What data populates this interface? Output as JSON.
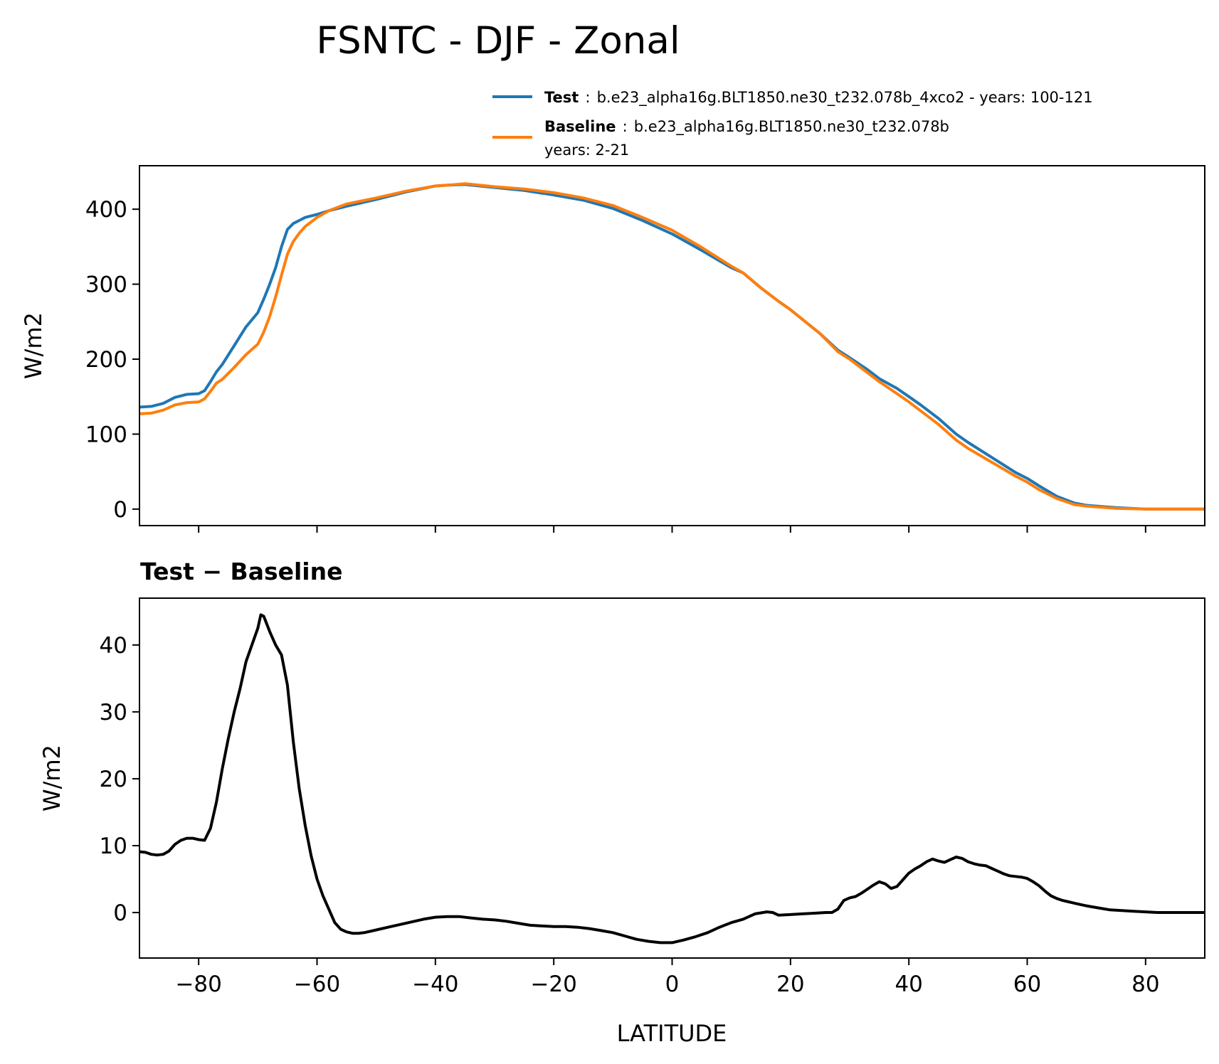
{
  "figure": {
    "title": "FSNTC - DJF - Zonal"
  },
  "legend": {
    "placement": "above-top-right",
    "entries": [
      {
        "name": "Test",
        "colon": ":",
        "desc": "b.e23_alpha16g.BLT1850.ne30_t232.078b_4xco2 - years: 100-121",
        "desc2": "",
        "color": "#1f77b4"
      },
      {
        "name": "Baseline",
        "colon": ":",
        "desc": "b.e23_alpha16g.BLT1850.ne30_t232.078b",
        "desc2": "years: 2-21",
        "color": "#ff7f0e"
      }
    ]
  },
  "chart_data": [
    {
      "type": "line",
      "title": "",
      "xlabel": "",
      "ylabel": "W/m2",
      "xlim": [
        -90,
        90
      ],
      "ylim": [
        -22,
        458
      ],
      "yticks": [
        0,
        100,
        200,
        300,
        400
      ],
      "ytick_labels": [
        "0",
        "100",
        "200",
        "300",
        "400"
      ],
      "xticks": [
        -80,
        -60,
        -40,
        -20,
        0,
        20,
        40,
        60,
        80
      ],
      "xtick_labels": [],
      "grid": false,
      "series": [
        {
          "name": "Test",
          "color": "#1f77b4",
          "x": [
            -90,
            -88,
            -86,
            -84,
            -82,
            -80,
            -79,
            -78,
            -77,
            -76,
            -74,
            -72,
            -70,
            -69,
            -68,
            -67,
            -66,
            -65,
            -64,
            -63,
            -62,
            -61,
            -60,
            -58,
            -55,
            -50,
            -45,
            -40,
            -38,
            -35,
            -30,
            -25,
            -20,
            -15,
            -10,
            -5,
            0,
            5,
            10,
            12,
            15,
            18,
            20,
            25,
            28,
            30,
            33,
            35,
            38,
            40,
            42,
            45,
            48,
            50,
            55,
            58,
            60,
            62,
            65,
            68,
            70,
            75,
            80,
            85,
            90
          ],
          "y": [
            136,
            137,
            141,
            149,
            153,
            154,
            158,
            170,
            183,
            193,
            218,
            243,
            262,
            280,
            300,
            322,
            350,
            373,
            381,
            385,
            389,
            391,
            393,
            398,
            404,
            413,
            423,
            431,
            432,
            433,
            429,
            425,
            419,
            412,
            401,
            385,
            367,
            345,
            322,
            315,
            295,
            277,
            266,
            234,
            212,
            202,
            186,
            174,
            161,
            150,
            139,
            121,
            100,
            89,
            64,
            49,
            41,
            31,
            17,
            8,
            5,
            2,
            0,
            0,
            0
          ]
        },
        {
          "name": "Baseline",
          "color": "#ff7f0e",
          "x": [
            -90,
            -88,
            -86,
            -84,
            -82,
            -80,
            -79,
            -78,
            -77,
            -76,
            -74,
            -72,
            -70,
            -69,
            -68,
            -67,
            -66,
            -65,
            -64,
            -63,
            -62,
            -61,
            -60,
            -58,
            -55,
            -50,
            -45,
            -40,
            -38,
            -35,
            -30,
            -25,
            -20,
            -15,
            -10,
            -5,
            0,
            5,
            10,
            12,
            15,
            18,
            20,
            25,
            28,
            30,
            33,
            35,
            38,
            40,
            42,
            45,
            48,
            50,
            55,
            58,
            60,
            62,
            65,
            68,
            70,
            75,
            80,
            85,
            90
          ],
          "y": [
            127,
            128,
            132,
            139,
            142,
            143,
            147,
            157,
            168,
            173,
            189,
            206,
            220,
            236,
            257,
            283,
            312,
            340,
            357,
            368,
            377,
            383,
            389,
            398,
            407,
            415,
            424,
            431,
            432,
            434,
            430,
            427,
            422,
            415,
            405,
            389,
            372,
            349,
            324,
            315,
            295,
            277,
            266,
            234,
            210,
            200,
            182,
            170,
            154,
            143,
            131,
            113,
            92,
            81,
            58,
            44,
            36,
            26,
            14,
            6,
            4,
            1,
            0,
            0,
            0
          ]
        }
      ]
    },
    {
      "type": "line",
      "title": "Test − Baseline",
      "xlabel": "LATITUDE",
      "ylabel": "W/m2",
      "xlim": [
        -90,
        90
      ],
      "ylim": [
        -6.8,
        47
      ],
      "yticks": [
        0,
        10,
        20,
        30,
        40
      ],
      "ytick_labels": [
        "0",
        "10",
        "20",
        "30",
        "40"
      ],
      "xticks": [
        -80,
        -60,
        -40,
        -20,
        0,
        20,
        40,
        60,
        80
      ],
      "xtick_labels": [
        "−80",
        "−60",
        "−40",
        "−20",
        "0",
        "20",
        "40",
        "60",
        "80"
      ],
      "grid": false,
      "series": [
        {
          "name": "",
          "color": "#000000",
          "x": [
            -90,
            -89,
            -88,
            -87,
            -86,
            -85,
            -84,
            -83,
            -82,
            -81,
            -80,
            -79,
            -78,
            -77,
            -76,
            -75,
            -74,
            -73,
            -72,
            -71,
            -70,
            -69.5,
            -69,
            -68,
            -67,
            -66,
            -65,
            -64,
            -63,
            -62,
            -61,
            -60,
            -59,
            -58,
            -57,
            -56,
            -55,
            -54,
            -53,
            -52,
            -50,
            -48,
            -45,
            -42,
            -40,
            -38,
            -36,
            -34,
            -32,
            -30,
            -28,
            -26,
            -24,
            -22,
            -20,
            -18,
            -16,
            -14,
            -12,
            -10,
            -8,
            -6,
            -4,
            -2,
            0,
            2,
            4,
            6,
            8,
            10,
            12,
            14,
            16,
            17,
            18,
            20,
            22,
            24,
            26,
            27,
            28,
            29,
            30,
            31,
            32,
            33,
            34,
            35,
            36,
            37,
            38,
            39,
            40,
            41,
            42,
            43,
            44,
            45,
            46,
            47,
            48,
            49,
            50,
            51,
            52,
            53,
            54,
            55,
            56,
            57,
            58,
            59,
            60,
            61,
            62,
            63,
            64,
            65,
            66,
            67,
            68,
            69,
            70,
            72,
            74,
            76,
            78,
            80,
            82,
            84,
            86,
            88,
            90
          ],
          "y": [
            9.1,
            9.0,
            8.7,
            8.6,
            8.7,
            9.2,
            10.2,
            10.8,
            11.1,
            11.1,
            10.9,
            10.8,
            12.6,
            16.5,
            21.5,
            26.0,
            30.0,
            33.5,
            37.5,
            40.0,
            42.5,
            44.5,
            44.3,
            42.0,
            40.0,
            38.5,
            34.0,
            25.5,
            18.5,
            13.0,
            8.5,
            5.0,
            2.5,
            0.5,
            -1.5,
            -2.5,
            -2.9,
            -3.1,
            -3.1,
            -3.0,
            -2.6,
            -2.2,
            -1.6,
            -1.0,
            -0.7,
            -0.6,
            -0.6,
            -0.8,
            -1.0,
            -1.1,
            -1.3,
            -1.6,
            -1.9,
            -2.0,
            -2.1,
            -2.1,
            -2.2,
            -2.4,
            -2.7,
            -3.0,
            -3.5,
            -4.0,
            -4.3,
            -4.5,
            -4.5,
            -4.1,
            -3.6,
            -3.0,
            -2.2,
            -1.5,
            -1.0,
            -0.2,
            0.1,
            0.0,
            -0.4,
            -0.3,
            -0.2,
            -0.1,
            0.0,
            0.0,
            0.5,
            1.8,
            2.2,
            2.4,
            2.9,
            3.5,
            4.1,
            4.6,
            4.3,
            3.6,
            3.9,
            4.9,
            5.9,
            6.5,
            7.0,
            7.6,
            8.0,
            7.7,
            7.5,
            7.9,
            8.3,
            8.1,
            7.6,
            7.3,
            7.1,
            7.0,
            6.6,
            6.2,
            5.8,
            5.5,
            5.4,
            5.3,
            5.1,
            4.6,
            4.0,
            3.2,
            2.5,
            2.1,
            1.8,
            1.6,
            1.4,
            1.2,
            1.0,
            0.7,
            0.4,
            0.3,
            0.2,
            0.1,
            0.0,
            0.0,
            0.0,
            0.0,
            0.0
          ]
        }
      ]
    }
  ]
}
